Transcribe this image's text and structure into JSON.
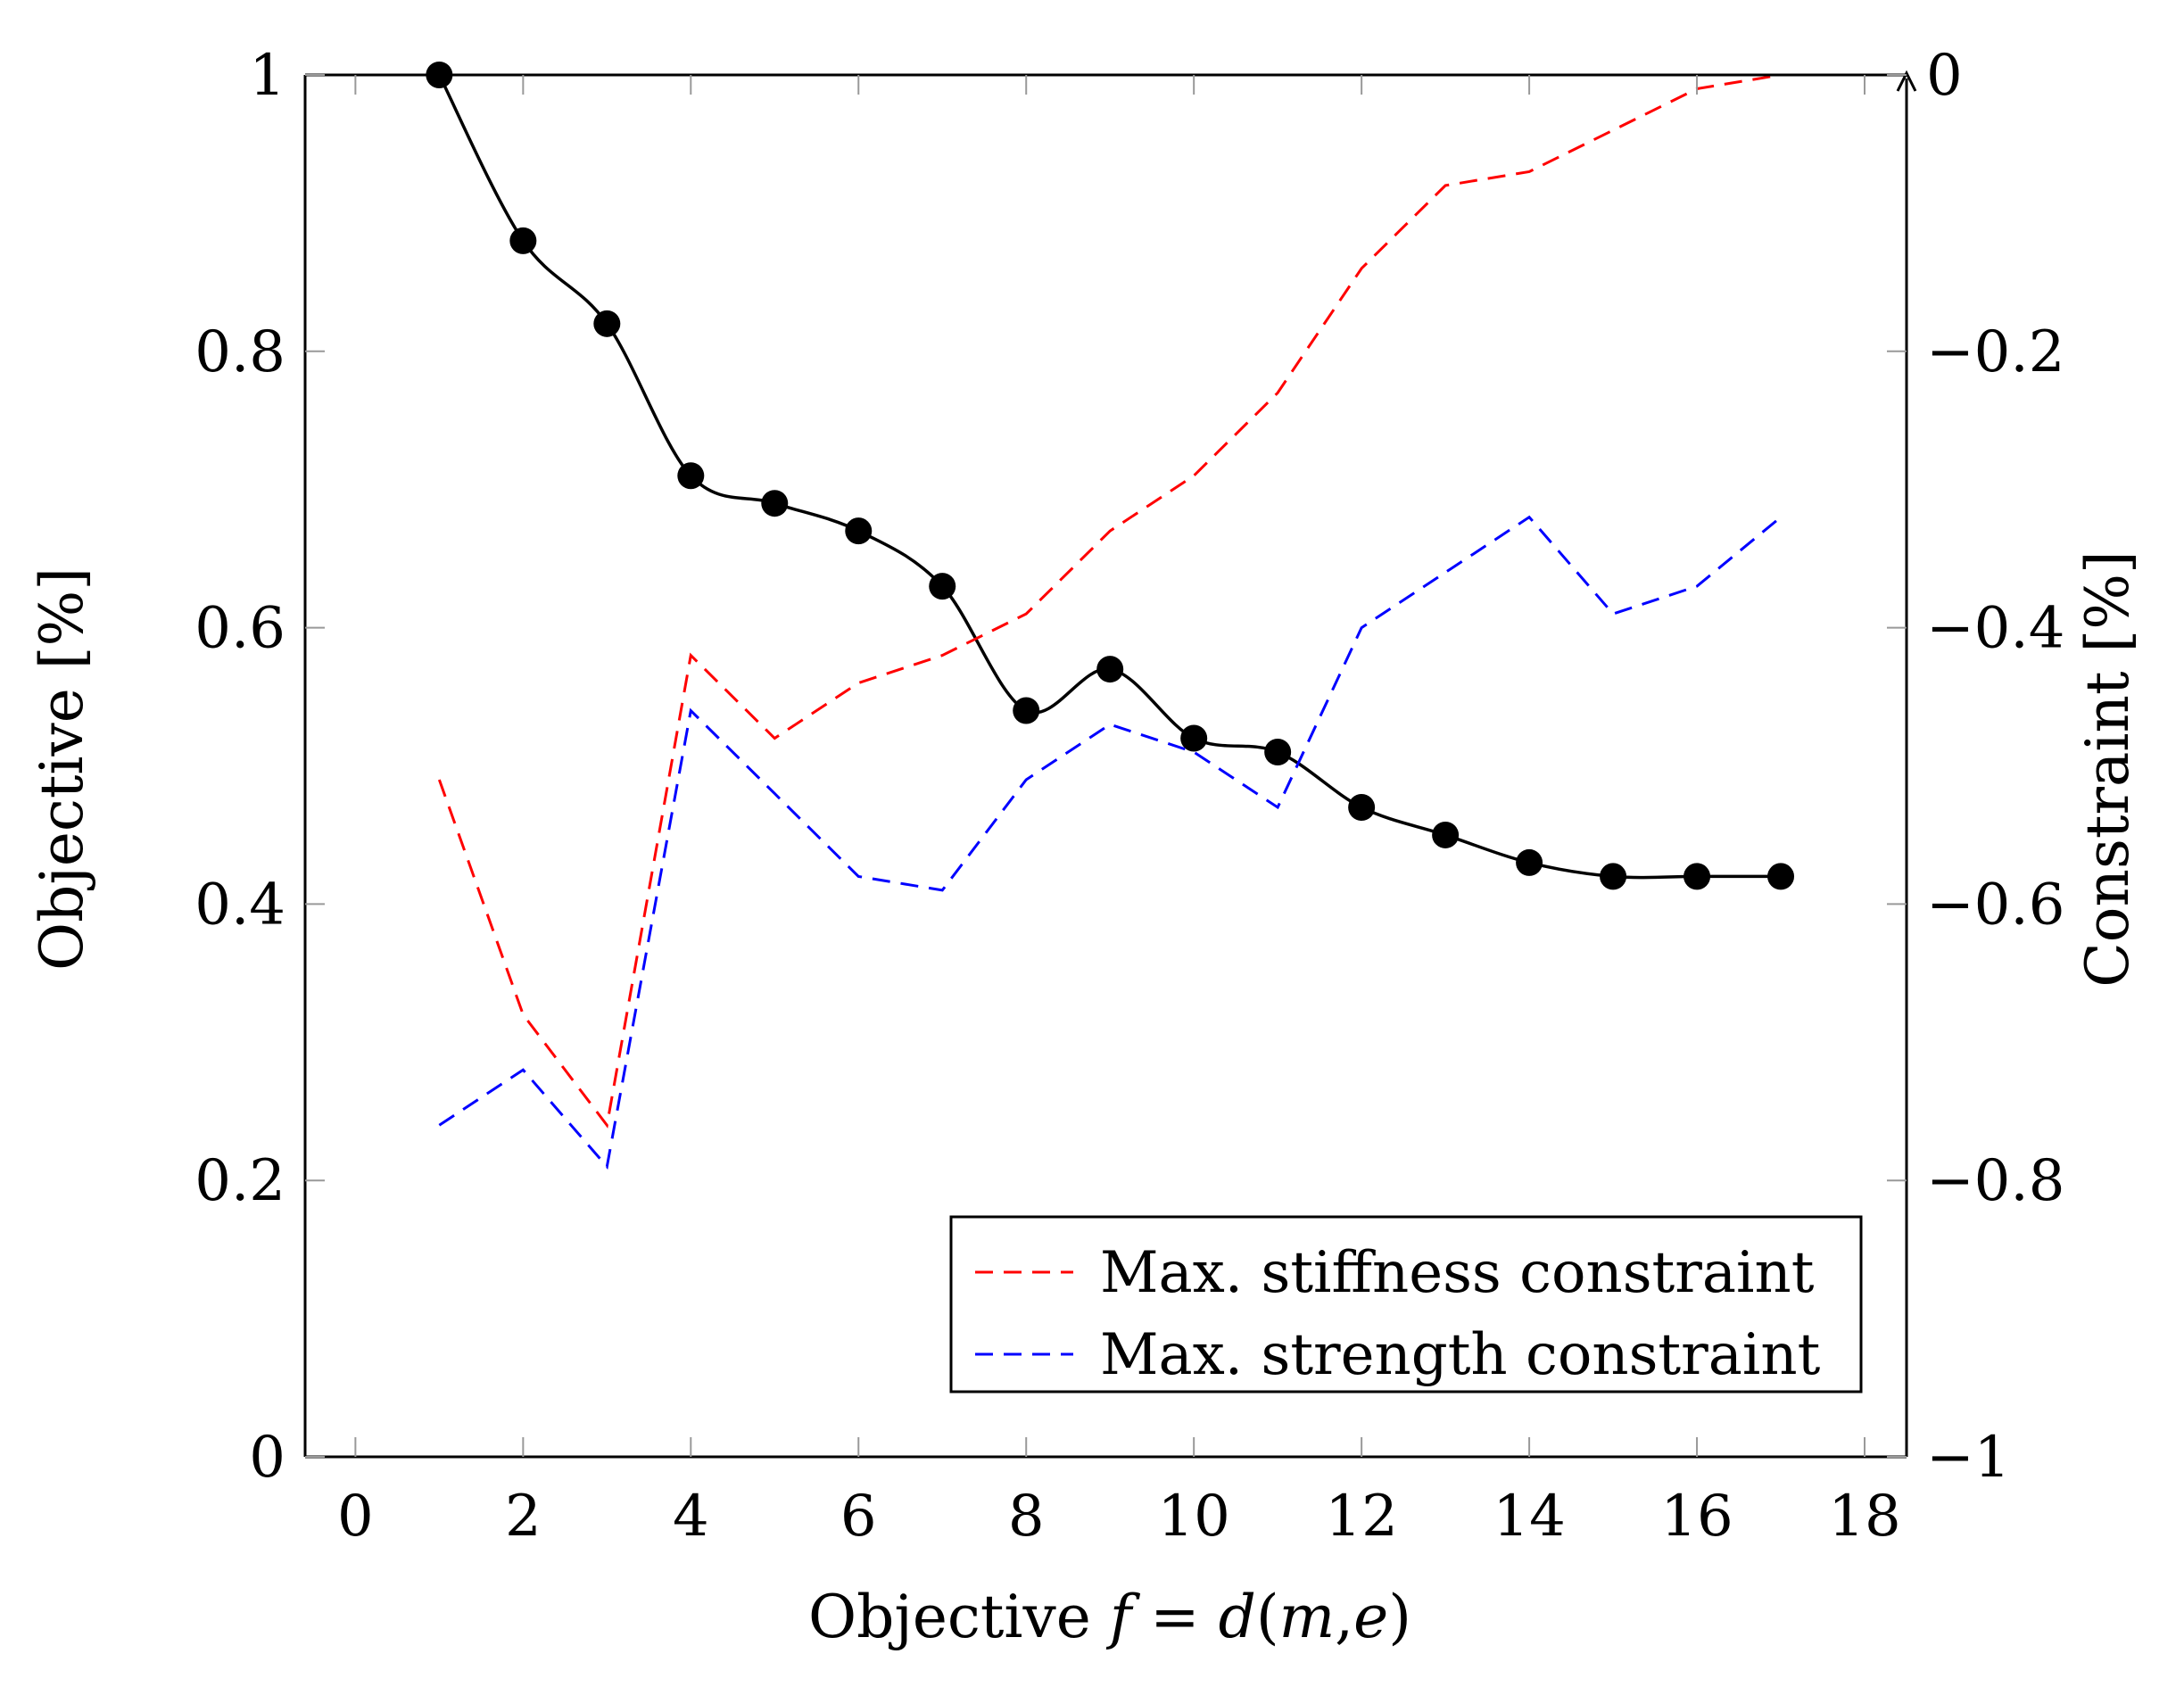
{
  "chart_data": {
    "type": "line",
    "title": "",
    "xlabel": "Objective f = d(m,e)",
    "xlabel_parts": {
      "prefix": "Objective ",
      "f": "f",
      "eq": " = ",
      "d": "d",
      "open": "(",
      "m": "m",
      "comma": ",",
      "e": "e",
      "close": ")"
    },
    "ylabel_left": "Objective [%]",
    "ylabel_right": "Constraint [%]",
    "xlim": [
      -0.6,
      18.5
    ],
    "ylim_left": [
      0,
      1
    ],
    "ylim_right": [
      -1,
      0
    ],
    "x_ticks": [
      0,
      2,
      4,
      6,
      8,
      10,
      12,
      14,
      16,
      18
    ],
    "x_tick_labels": [
      "0",
      "2",
      "4",
      "6",
      "8",
      "10",
      "12",
      "14",
      "16",
      "18"
    ],
    "y_left_ticks": [
      0,
      0.2,
      0.4,
      0.6,
      0.8,
      1
    ],
    "y_left_tick_labels": [
      "0",
      "0.2",
      "0.4",
      "0.6",
      "0.8",
      "1"
    ],
    "y_right_ticks": [
      -1,
      -0.8,
      -0.6,
      -0.4,
      -0.2,
      0
    ],
    "y_right_tick_labels": [
      "−1",
      "−0.8",
      "−0.6",
      "−0.4",
      "−0.2",
      "0"
    ],
    "grid": false,
    "legend_position": "bottom-right",
    "series": [
      {
        "name": "Objective",
        "axis": "left",
        "style": "solid-smooth-markers",
        "color": "#000000",
        "x": [
          1,
          2,
          3,
          4,
          5,
          6,
          7,
          8,
          9,
          10,
          11,
          12,
          13,
          14,
          15,
          16,
          17
        ],
        "values": [
          1.0,
          0.88,
          0.82,
          0.71,
          0.69,
          0.67,
          0.63,
          0.54,
          0.57,
          0.52,
          0.51,
          0.47,
          0.45,
          0.43,
          0.42,
          0.42,
          0.42
        ]
      },
      {
        "name": "Max. stiffness constraint",
        "axis": "right",
        "style": "dashed",
        "color": "#ff0000",
        "x": [
          1,
          2,
          3,
          4,
          5,
          6,
          7,
          8,
          9,
          10,
          11,
          12,
          13,
          14,
          15,
          16,
          17
        ],
        "values": [
          -0.51,
          -0.68,
          -0.76,
          -0.42,
          -0.48,
          -0.44,
          -0.42,
          -0.39,
          -0.33,
          -0.29,
          -0.23,
          -0.14,
          -0.08,
          -0.07,
          -0.04,
          -0.01,
          0.0
        ]
      },
      {
        "name": "Max. strength constraint",
        "axis": "right",
        "style": "dashed",
        "color": "#0000ff",
        "x": [
          1,
          2,
          3,
          4,
          5,
          6,
          7,
          8,
          9,
          10,
          11,
          12,
          13,
          14,
          15,
          16,
          17
        ],
        "values": [
          -0.76,
          -0.72,
          -0.79,
          -0.46,
          -0.52,
          -0.58,
          -0.59,
          -0.51,
          -0.47,
          -0.49,
          -0.53,
          -0.4,
          -0.36,
          -0.32,
          -0.39,
          -0.37,
          -0.32
        ]
      }
    ]
  }
}
